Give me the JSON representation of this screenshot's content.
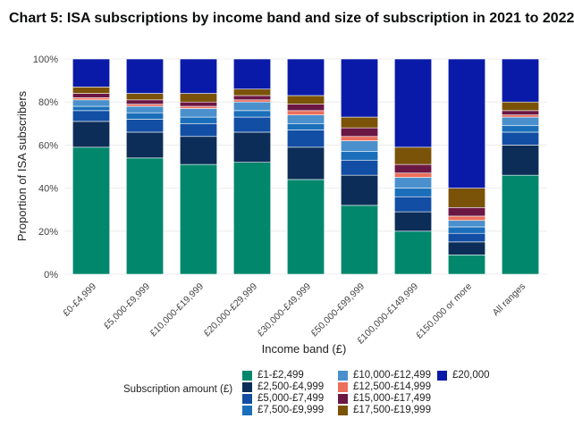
{
  "page": {
    "title": "Chart 5: ISA subscriptions by income band and size of subscription in 2021 to 2022"
  },
  "chart_data": {
    "type": "bar",
    "stacked": true,
    "xlabel": "Income band (£)",
    "ylabel": "Proportion of ISA subscribers",
    "ylim": [
      0,
      100
    ],
    "yticks": [
      "0%",
      "20%",
      "40%",
      "60%",
      "80%",
      "100%"
    ],
    "grid": true,
    "legend_title": "Subscription amount (£)",
    "legend_position": "bottom",
    "categories": [
      "£0-£4,999",
      "£5,000-£9,999",
      "£10,000-£19,999",
      "£20,000-£29,999",
      "£30,000-£49,999",
      "£50,000-£99,999",
      "£100,000-£149,999",
      "£150,000 or more",
      "All ranges"
    ],
    "series": [
      {
        "name": "£1-£2,499",
        "color": "#00876c",
        "values": [
          59,
          54,
          51,
          52,
          44,
          32,
          20,
          9,
          46
        ]
      },
      {
        "name": "£2,500-£4,999",
        "color": "#0c2d57",
        "values": [
          12,
          12,
          13,
          14,
          15,
          14,
          9,
          6,
          14
        ]
      },
      {
        "name": "£5,000-£7,499",
        "color": "#124ea3",
        "values": [
          5,
          6,
          6,
          7,
          8,
          7,
          7,
          4,
          6
        ]
      },
      {
        "name": "£7,500-£9,999",
        "color": "#1b6fba",
        "values": [
          2,
          3,
          3,
          3,
          3,
          4,
          4,
          3,
          3
        ]
      },
      {
        "name": "£10,000-£12,499",
        "color": "#4a90cd",
        "values": [
          3,
          3,
          4,
          4,
          4,
          5,
          5,
          3,
          4
        ]
      },
      {
        "name": "£12,500-£14,999",
        "color": "#ec6f5b",
        "values": [
          1,
          1,
          1,
          1,
          2,
          2,
          2,
          2,
          1
        ]
      },
      {
        "name": "£15,000-£17,499",
        "color": "#6b1744",
        "values": [
          2,
          2,
          2,
          2,
          3,
          4,
          4,
          4,
          2
        ]
      },
      {
        "name": "£17,500-£19,999",
        "color": "#7a5208",
        "values": [
          3,
          3,
          4,
          3,
          4,
          5,
          8,
          9,
          4
        ]
      },
      {
        "name": "£20,000",
        "color": "#0a1aa8",
        "values": [
          13,
          16,
          16,
          14,
          17,
          27,
          41,
          60,
          20
        ]
      }
    ]
  }
}
